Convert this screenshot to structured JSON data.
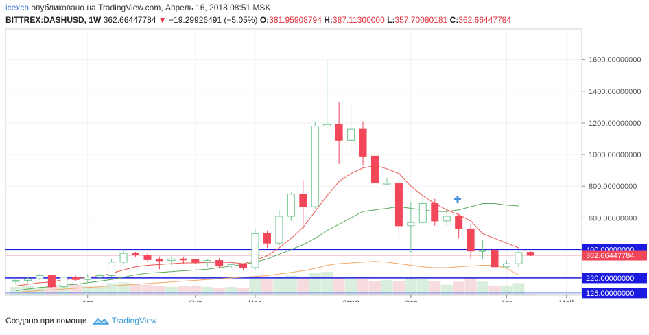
{
  "header": {
    "user": "icexch",
    "published": "опубликовано на TradingView.com, Апрель 16, 2018 08:51 MSK",
    "symbol": "BITTREX:DASHUSD, 1W",
    "last": "362.66447784",
    "change": "−19.29926491 (−5.05%)",
    "o_label": "O:",
    "o_value": "381.95908794",
    "h_label": "H:",
    "h_value": "387.11300000",
    "l_label": "L:",
    "l_value": "357.70080181",
    "c_label": "C:",
    "c_value": "362.66447784"
  },
  "footer": {
    "created_with": "Создано при помощи",
    "brand": "TradingView"
  },
  "colors": {
    "up": "#6ec58f",
    "down": "#f24659",
    "volume_up": "#d9eedd",
    "volume_down": "#f7dcdf",
    "ma_fast": "#e8574e",
    "ma_mid": "#5aa85a",
    "ma_slow": "#f0a86a",
    "level_line": "#1a1ae0",
    "level_light": "#6f8fe8",
    "current_line": "#f0a0a8"
  },
  "chart_data": {
    "type": "candlestick",
    "ylim": [
      0,
      1700
    ],
    "y_ticks": [
      {
        "value": 1600,
        "label": "1600.00000000"
      },
      {
        "value": 1400,
        "label": "1400.00000000"
      },
      {
        "value": 1200,
        "label": "1200.00000000"
      },
      {
        "value": 1000,
        "label": "1000.00000000"
      },
      {
        "value": 800,
        "label": "800.00000000"
      },
      {
        "value": 600,
        "label": "600.00000000"
      }
    ],
    "x_ticks": [
      {
        "index": 6,
        "label": "Авг"
      },
      {
        "index": 15,
        "label": "Окт"
      },
      {
        "index": 20,
        "label": "Ноя"
      },
      {
        "index": 28,
        "label": "2018"
      },
      {
        "index": 33,
        "label": "Фев"
      },
      {
        "index": 41,
        "label": "Апр"
      },
      {
        "index": 46,
        "label": "Май"
      }
    ],
    "candles": [
      {
        "o": 198,
        "h": 220,
        "l": 180,
        "c": 205
      },
      {
        "o": 205,
        "h": 230,
        "l": 190,
        "c": 215
      },
      {
        "o": 215,
        "h": 245,
        "l": 205,
        "c": 235
      },
      {
        "o": 235,
        "h": 240,
        "l": 155,
        "c": 165
      },
      {
        "o": 165,
        "h": 230,
        "l": 160,
        "c": 225
      },
      {
        "o": 225,
        "h": 235,
        "l": 200,
        "c": 210
      },
      {
        "o": 210,
        "h": 245,
        "l": 195,
        "c": 225
      },
      {
        "o": 225,
        "h": 245,
        "l": 215,
        "c": 235
      },
      {
        "o": 235,
        "h": 340,
        "l": 225,
        "c": 320
      },
      {
        "o": 320,
        "h": 400,
        "l": 305,
        "c": 375
      },
      {
        "o": 375,
        "h": 385,
        "l": 350,
        "c": 365
      },
      {
        "o": 365,
        "h": 375,
        "l": 320,
        "c": 335
      },
      {
        "o": 335,
        "h": 355,
        "l": 275,
        "c": 330
      },
      {
        "o": 330,
        "h": 355,
        "l": 300,
        "c": 340
      },
      {
        "o": 340,
        "h": 355,
        "l": 310,
        "c": 335
      },
      {
        "o": 335,
        "h": 340,
        "l": 310,
        "c": 320
      },
      {
        "o": 320,
        "h": 340,
        "l": 290,
        "c": 330
      },
      {
        "o": 330,
        "h": 345,
        "l": 280,
        "c": 295
      },
      {
        "o": 295,
        "h": 310,
        "l": 280,
        "c": 305
      },
      {
        "o": 305,
        "h": 310,
        "l": 270,
        "c": 285
      },
      {
        "o": 285,
        "h": 530,
        "l": 270,
        "c": 500
      },
      {
        "o": 500,
        "h": 520,
        "l": 410,
        "c": 440
      },
      {
        "o": 440,
        "h": 650,
        "l": 420,
        "c": 610
      },
      {
        "o": 610,
        "h": 760,
        "l": 580,
        "c": 750
      },
      {
        "o": 750,
        "h": 840,
        "l": 530,
        "c": 670
      },
      {
        "o": 670,
        "h": 1210,
        "l": 660,
        "c": 1180
      },
      {
        "o": 1180,
        "h": 1600,
        "l": 1170,
        "c": 1190
      },
      {
        "o": 1190,
        "h": 1330,
        "l": 940,
        "c": 1090
      },
      {
        "o": 1090,
        "h": 1320,
        "l": 1000,
        "c": 1160
      },
      {
        "o": 1160,
        "h": 1210,
        "l": 930,
        "c": 990
      },
      {
        "o": 990,
        "h": 1000,
        "l": 590,
        "c": 820
      },
      {
        "o": 820,
        "h": 850,
        "l": 810,
        "c": 820
      },
      {
        "o": 820,
        "h": 830,
        "l": 470,
        "c": 550
      },
      {
        "o": 550,
        "h": 700,
        "l": 380,
        "c": 570
      },
      {
        "o": 570,
        "h": 740,
        "l": 550,
        "c": 690
      },
      {
        "o": 690,
        "h": 720,
        "l": 550,
        "c": 580
      },
      {
        "o": 580,
        "h": 650,
        "l": 550,
        "c": 610
      },
      {
        "o": 610,
        "h": 625,
        "l": 470,
        "c": 530
      },
      {
        "o": 530,
        "h": 560,
        "l": 340,
        "c": 390
      },
      {
        "o": 390,
        "h": 460,
        "l": 340,
        "c": 395
      },
      {
        "o": 395,
        "h": 405,
        "l": 290,
        "c": 290
      },
      {
        "o": 290,
        "h": 330,
        "l": 280,
        "c": 310
      },
      {
        "o": 310,
        "h": 390,
        "l": 290,
        "c": 380
      },
      {
        "o": 381.96,
        "h": 387.11,
        "l": 357.7,
        "c": 362.66
      }
    ],
    "volumes": [
      55,
      65,
      50,
      60,
      65,
      70,
      60,
      55,
      80,
      85,
      75,
      70,
      60,
      55,
      60,
      65,
      55,
      50,
      55,
      50,
      115,
      105,
      120,
      130,
      115,
      150,
      155,
      115,
      110,
      105,
      95,
      100,
      95,
      115,
      105,
      95,
      70,
      90,
      120,
      90,
      65,
      65,
      80,
      8
    ],
    "volume_max": 400,
    "ma_fast": [
      170,
      180,
      190,
      195,
      210,
      215,
      225,
      230,
      250,
      270,
      290,
      300,
      305,
      310,
      315,
      315,
      318,
      320,
      318,
      310,
      330,
      360,
      410,
      470,
      540,
      640,
      740,
      830,
      880,
      915,
      930,
      910,
      880,
      800,
      740,
      690,
      650,
      620,
      580,
      500,
      470,
      440,
      410
    ],
    "ma_mid": [
      140,
      150,
      160,
      165,
      175,
      180,
      190,
      200,
      210,
      225,
      240,
      250,
      255,
      260,
      265,
      270,
      275,
      285,
      295,
      305,
      320,
      340,
      370,
      400,
      430,
      470,
      520,
      560,
      600,
      640,
      650,
      660,
      670,
      660,
      650,
      640,
      640,
      650,
      670,
      690,
      690,
      680,
      675
    ],
    "ma_slow": [
      130,
      135,
      140,
      145,
      150,
      155,
      160,
      165,
      170,
      175,
      180,
      185,
      190,
      195,
      200,
      205,
      210,
      215,
      220,
      225,
      230,
      235,
      245,
      255,
      265,
      280,
      300,
      310,
      315,
      320,
      325,
      320,
      310,
      300,
      290,
      285,
      285,
      290,
      295,
      300,
      300,
      280,
      240
    ],
    "levels": [
      {
        "value": 400,
        "label": "400.00000000",
        "color": "#1a1ae0",
        "width": 1.5
      },
      {
        "value": 220,
        "label": "220.00000000",
        "color": "#1a1ae0",
        "width": 1.5
      },
      {
        "value": 125,
        "label": "125.00000000",
        "color": "#6f8fe8",
        "width": 1
      }
    ],
    "current": {
      "value": 362.66447784,
      "label": "362.66447784",
      "color": "#f24659"
    }
  }
}
